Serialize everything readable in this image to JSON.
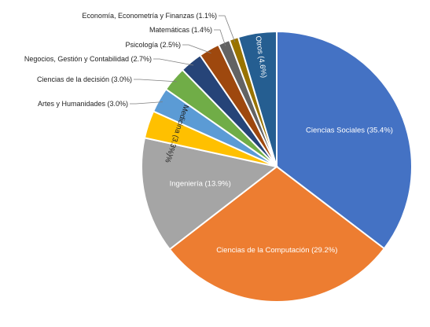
{
  "chart_data": {
    "type": "pie",
    "start": "12 o'clock, clockwise",
    "slices": [
      {
        "label": "Ciencias Sociales (35.4%)",
        "value": 35.4,
        "color": "#4472C4"
      },
      {
        "label": "Ciencias de la Computación (29.2%)",
        "value": 29.2,
        "color": "#ED7D31"
      },
      {
        "label": "Ingeniería (13.9%)",
        "value": 13.9,
        "color": "#A5A5A5"
      },
      {
        "label": "Medicina (3.3%)%",
        "value": 3.3,
        "color": "#FFC000"
      },
      {
        "label": "Artes y Humanidades (3.0%)",
        "value": 3.0,
        "color": "#5B9BD5"
      },
      {
        "label": "Ciencias de la decisión (3.0%)",
        "value": 3.0,
        "color": "#70AD47"
      },
      {
        "label": "Negocios, Gestión y Contabilidad (2.7%)",
        "value": 2.7,
        "color": "#264478"
      },
      {
        "label": "Psicología (2.5%)",
        "value": 2.5,
        "color": "#9E480E"
      },
      {
        "label": "Matemáticas (1.4%)",
        "value": 1.4,
        "color": "#636363"
      },
      {
        "label": "Economía, Econometría y Finanzas (1.1%)",
        "value": 1.1,
        "color": "#997300"
      },
      {
        "label": "Otros (4.6%)",
        "value": 4.6,
        "color": "#255E91"
      }
    ]
  }
}
